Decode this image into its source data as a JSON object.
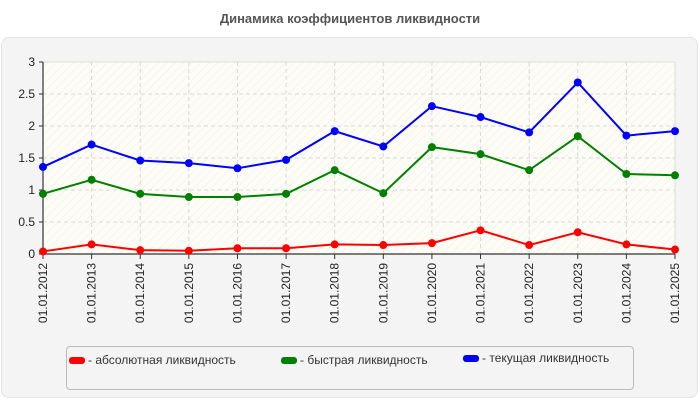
{
  "title": "Динамика коэффициентов ликвидности",
  "chart_data": {
    "type": "line",
    "title": "Динамика коэффициентов ликвидности",
    "xlabel": "",
    "ylabel": "",
    "ylim": [
      0,
      3
    ],
    "yticks": [
      "0",
      "0.5",
      "1",
      "1.5",
      "2",
      "2.5",
      "3"
    ],
    "grid": true,
    "legend_position": "bottom",
    "categories": [
      "01.01.2012",
      "01.01.2013",
      "01.01.2014",
      "01.01.2015",
      "01.01.2016",
      "01.01.2017",
      "01.01.2018",
      "01.01.2019",
      "01.01.2020",
      "01.01.2021",
      "01.01.2022",
      "01.01.2023",
      "01.01.2024",
      "01.01.2025"
    ],
    "series": [
      {
        "name": "абсолютная ликвидность",
        "color": "#ff0000",
        "values": [
          0.04,
          0.15,
          0.06,
          0.05,
          0.09,
          0.09,
          0.15,
          0.14,
          0.17,
          0.37,
          0.14,
          0.34,
          0.15,
          0.07
        ]
      },
      {
        "name": "быстрая ликвидность",
        "color": "#008000",
        "values": [
          0.94,
          1.16,
          0.94,
          0.89,
          0.89,
          0.94,
          1.31,
          0.95,
          1.67,
          1.56,
          1.31,
          1.84,
          1.25,
          1.23
        ]
      },
      {
        "name": "текущая ликвидность",
        "color": "#0000ff",
        "values": [
          1.36,
          1.71,
          1.46,
          1.42,
          1.34,
          1.47,
          1.92,
          1.68,
          2.31,
          2.14,
          1.9,
          2.68,
          1.85,
          1.92
        ]
      }
    ]
  },
  "legend": [
    {
      "label": "- абсолютная ликвидность",
      "color": "#ff0000"
    },
    {
      "label": "- быстрая ликвидность",
      "color": "#008000"
    },
    {
      "label": "- текущая ликвидность",
      "color": "#0000ff"
    }
  ]
}
